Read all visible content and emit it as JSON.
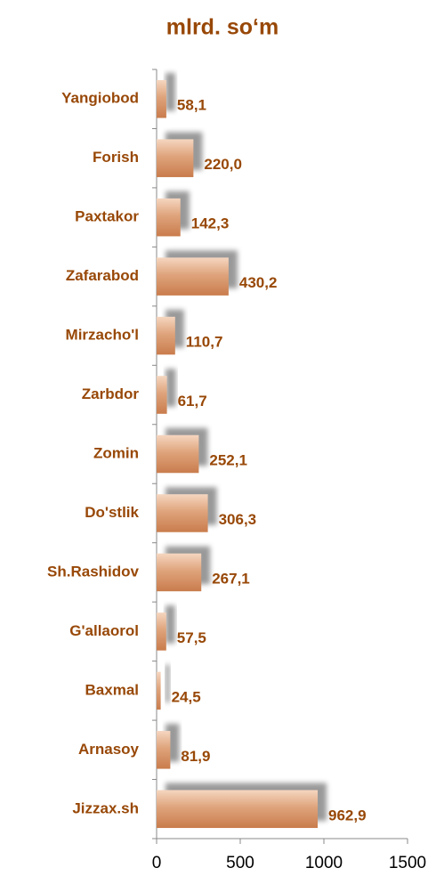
{
  "chart_data": {
    "type": "bar",
    "orientation": "horizontal",
    "title": "mlrd. so‘m",
    "categories": [
      "Yangiobod",
      "Forish",
      "Paxtakor",
      "Zafarabod",
      "Mirzacho'l",
      "Zarbdor",
      "Zomin",
      "Do'stlik",
      "Sh.Rashidov",
      "G'allaorol",
      "Baxmal",
      "Arnasoy",
      "Jizzax.sh"
    ],
    "values": [
      58.1,
      220.0,
      142.3,
      430.2,
      110.7,
      61.7,
      252.1,
      306.3,
      267.1,
      57.5,
      24.5,
      81.9,
      962.9
    ],
    "value_labels": [
      "58,1",
      "220,0",
      "142,3",
      "430,2",
      "110,7",
      "61,7",
      "252,1",
      "306,3",
      "267,1",
      "57,5",
      "24,5",
      "81,9",
      "962,9"
    ],
    "color": "#d9956a",
    "xlim": [
      0,
      1500
    ],
    "xticks": [
      0,
      500,
      1000,
      1500
    ]
  }
}
